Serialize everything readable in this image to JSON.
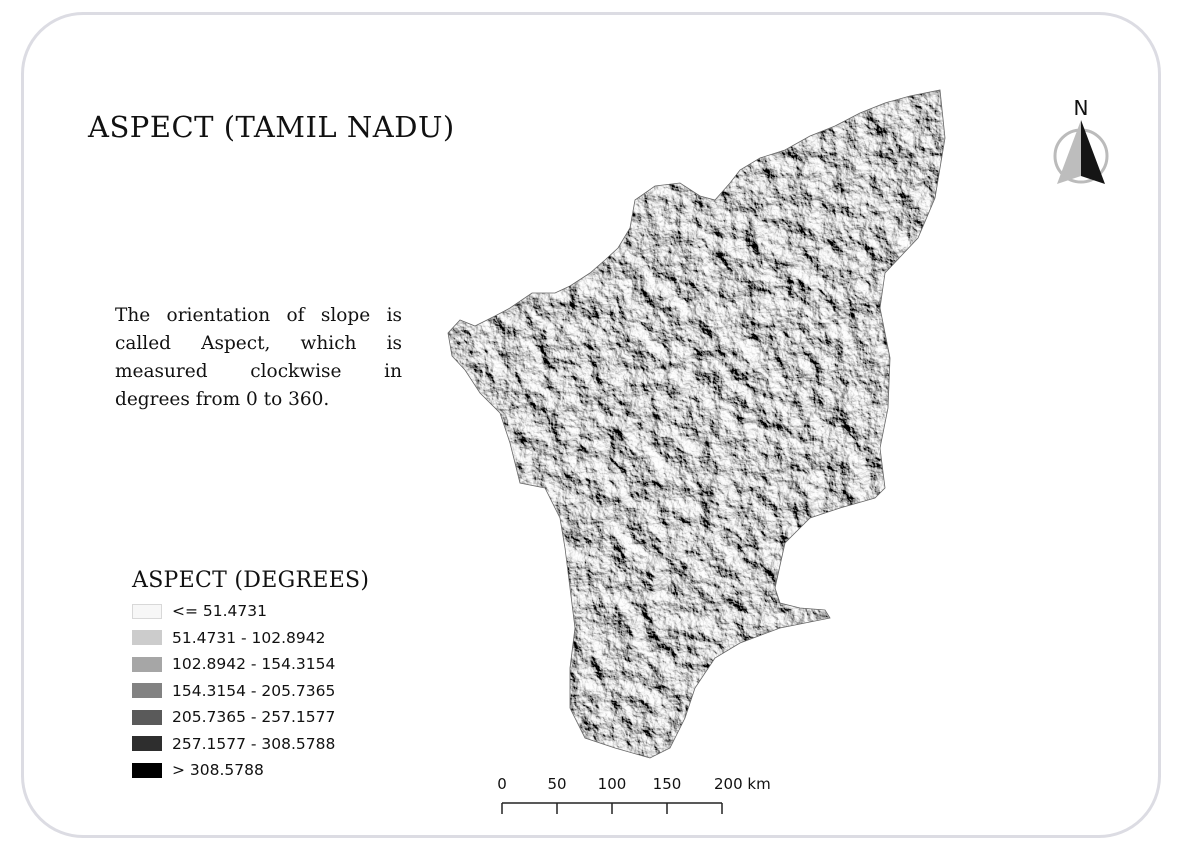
{
  "title": "ASPECT (TAMIL NADU)",
  "description": "The orientation of slope is called Aspect, which is measured clockwise in degrees from 0 to 360.",
  "north_arrow": {
    "label": "N"
  },
  "legend": {
    "title": "ASPECT (DEGREES)",
    "items": [
      {
        "label": "<= 51.4731",
        "color": "#f7f7f7"
      },
      {
        "label": "51.4731 - 102.8942",
        "color": "#cccccc"
      },
      {
        "label": "102.8942 - 154.3154",
        "color": "#a6a6a6"
      },
      {
        "label": "154.3154 - 205.7365",
        "color": "#828282"
      },
      {
        "label": "205.7365 - 257.1577",
        "color": "#5a5a5a"
      },
      {
        "label": "257.1577 - 308.5788",
        "color": "#2e2e2e"
      },
      {
        "label": "> 308.5788",
        "color": "#000000"
      }
    ]
  },
  "scale_bar": {
    "ticks": [
      "0",
      "50",
      "100",
      "150",
      "200 km"
    ]
  }
}
